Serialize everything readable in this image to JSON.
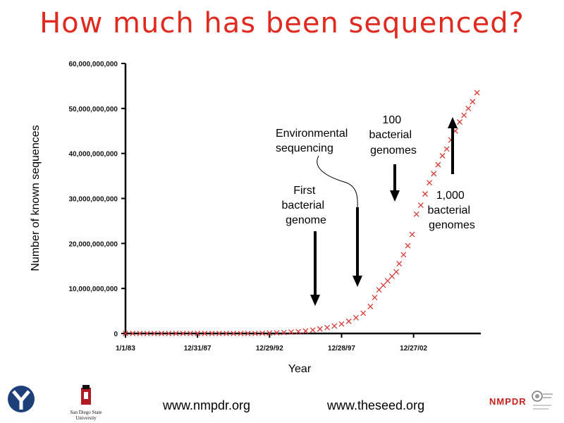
{
  "title": "How much has been sequenced?",
  "footer": {
    "link1": "www.nmpdr.org",
    "link2": "www.theseed.org",
    "university": "San Diego State University",
    "nmpdr_logo": "NMPDR"
  },
  "annotations": {
    "first_bacterial_genome": [
      "First",
      "bacterial",
      "genome"
    ],
    "environmental_sequencing": [
      "Environmental",
      "sequencing"
    ],
    "hundred_bacterial_genomes": [
      "100",
      "bacterial",
      "genomes"
    ],
    "thousand_bacterial_genomes": [
      "1,000",
      "bacterial",
      "genomes"
    ]
  },
  "colors": {
    "title": "#e0291f",
    "marker": "#d63a35",
    "axis": "#000000"
  },
  "chart_data": {
    "type": "scatter",
    "marker": "x",
    "xlabel": "Year",
    "ylabel": "Number of known sequences",
    "xlim": [
      "1983-01-01",
      "2007-09-01"
    ],
    "ylim": [
      0,
      60000000000
    ],
    "x_tick_labels": [
      "1/1/83",
      "12/31/87",
      "12/29/92",
      "12/28/97",
      "12/27/02"
    ],
    "y_tick_labels": [
      "0",
      "10,000,000,000",
      "20,000,000,000",
      "30,000,000,000",
      "40,000,000,000",
      "50,000,000,000",
      "60,000,000,000"
    ],
    "y_ticks": [
      0,
      10000000000,
      20000000000,
      30000000000,
      40000000000,
      50000000000,
      60000000000
    ],
    "series": [
      {
        "x": [
          1983.0,
          1983.5,
          1984.0,
          1984.5,
          1985.0,
          1985.5,
          1986.0,
          1986.5,
          1987.0,
          1987.5,
          1988.0,
          1988.5,
          1989.0,
          1989.5,
          1990.0,
          1990.5,
          1991.0,
          1991.5,
          1992.0,
          1992.5,
          1993.0,
          1993.5,
          1994.0,
          1994.5,
          1995.0,
          1995.5,
          1996.0,
          1996.5,
          1997.0,
          1997.5,
          1998.0,
          1998.5,
          1999.0,
          1999.5,
          2000.0,
          2000.3,
          2000.6,
          2000.9,
          2001.2,
          2001.5,
          2001.8,
          2002.0,
          2002.3,
          2002.6,
          2002.9,
          2003.2,
          2003.5,
          2003.8,
          2004.1,
          2004.4,
          2004.7,
          2005.0,
          2005.3,
          2005.6,
          2005.9,
          2006.2,
          2006.5,
          2006.8,
          2007.1,
          2007.4
        ],
        "y": [
          0,
          0,
          0,
          0,
          0,
          0,
          0,
          0,
          0,
          0,
          0,
          0,
          0,
          0,
          0,
          0,
          0,
          0,
          0,
          50000000,
          100000000,
          150000000,
          200000000,
          300000000,
          400000000,
          550000000,
          750000000,
          1000000000,
          1300000000,
          1650000000,
          2100000000,
          2700000000,
          3500000000,
          4500000000,
          6000000000,
          8000000000,
          9700000000,
          10700000000,
          11700000000,
          12700000000,
          13700000000,
          15500000000,
          17500000000,
          19500000000,
          22000000000,
          26500000000,
          28500000000,
          31000000000,
          33500000000,
          35500000000,
          37500000000,
          39500000000,
          41000000000,
          43000000000,
          45000000000,
          47000000000,
          48500000000,
          50000000000,
          51500000000,
          53500000000
        ]
      }
    ],
    "arrows": [
      {
        "label": "first_bacterial_genome",
        "x": 1995.7,
        "direction": "down"
      },
      {
        "label": "environmental_sequencing",
        "x": 1998.2,
        "direction": "down"
      },
      {
        "label": "hundred_bacterial_genomes",
        "x": 2001.0,
        "direction": "down"
      },
      {
        "label": "thousand_bacterial_genomes",
        "x": 2005.0,
        "direction": "up"
      }
    ]
  }
}
